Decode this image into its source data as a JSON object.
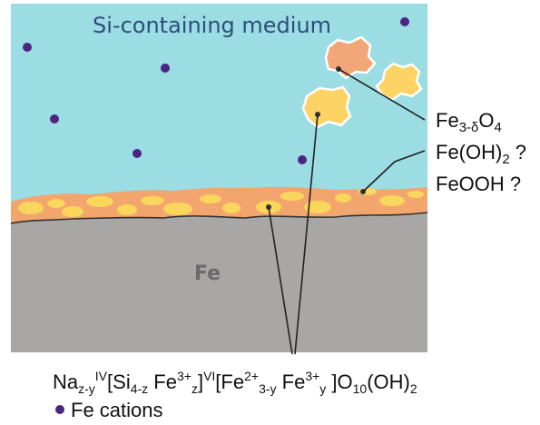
{
  "medium_label": "Si-containing medium",
  "substrate_label": "Fe",
  "oxide_labels": {
    "fe3o4": {
      "base": "Fe",
      "sub": "3-δ",
      "tail": "O",
      "sub2": "4"
    },
    "feoh2": {
      "base": "Fe(OH)",
      "sub": "2",
      "tail": " ?"
    },
    "feooh": {
      "text": "FeOOH ?"
    }
  },
  "formula": {
    "parts": [
      {
        "t": "Na",
        "k": "n"
      },
      {
        "t": "z-y",
        "k": "sub"
      },
      {
        "t": "IV",
        "k": "sup"
      },
      {
        "t": "[Si",
        "k": "n"
      },
      {
        "t": "4-z",
        "k": "sub"
      },
      {
        "t": " Fe",
        "k": "n"
      },
      {
        "t": "3+",
        "k": "sup"
      },
      {
        "t": "z",
        "k": "sub"
      },
      {
        "t": "]",
        "k": "n"
      },
      {
        "t": "VI",
        "k": "sup"
      },
      {
        "t": "[Fe",
        "k": "n"
      },
      {
        "t": "2+",
        "k": "sup"
      },
      {
        "t": "3-y",
        "k": "sub"
      },
      {
        "t": " Fe",
        "k": "n"
      },
      {
        "t": "3+",
        "k": "sup"
      },
      {
        "t": "y",
        "k": "sub"
      },
      {
        "t": " ]O",
        "k": "n"
      },
      {
        "t": "10",
        "k": "sub"
      },
      {
        "t": "(OH)",
        "k": "n"
      },
      {
        "t": "2",
        "k": "sub"
      }
    ]
  },
  "legend": {
    "marker": "•",
    "label": "Fe cations"
  },
  "colors": {
    "medium": "#9bdde3",
    "substrate": "#a9a6a6",
    "layer_orange": "#f2a66e",
    "layer_yellow": "#fbd65c",
    "particle_orange": "#f3a677",
    "particle_yellow": "#fcd364",
    "cation": "#4b2580",
    "title_blue": "#2d4e7a"
  }
}
